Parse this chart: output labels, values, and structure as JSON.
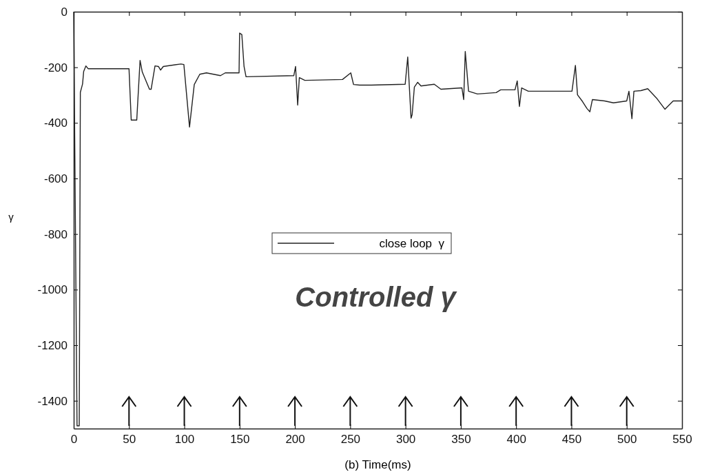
{
  "chart_data": {
    "type": "line",
    "xlabel": "(b) Time(ms)",
    "ylabel": "γ",
    "xlim": [
      0,
      550
    ],
    "xticks": [
      0,
      50,
      100,
      150,
      200,
      250,
      300,
      350,
      400,
      450,
      500,
      550
    ],
    "ylim": [
      -1500,
      0
    ],
    "yticks": [
      -1400,
      -1200,
      -1000,
      -800,
      -600,
      -400,
      -200,
      0
    ],
    "grid": false,
    "legend": "center",
    "annotations": [
      "Controlled γ"
    ],
    "series": [
      {
        "name": "close loop  γ",
        "color": "#222222",
        "x": [
          0,
          3,
          5,
          6,
          8,
          9,
          11,
          13,
          14,
          50,
          52,
          57,
          60,
          62,
          68.5,
          70,
          73.5,
          76.6,
          78.5,
          81,
          97,
          99.6,
          104.7,
          109,
          114,
          120,
          132.7,
          137,
          149.5,
          150,
          152,
          154,
          155.8,
          199,
          200.6,
          202.5,
          204,
          209,
          243,
          250.5,
          253,
          258.5,
          269,
          299.7,
          302,
          305,
          306,
          308,
          311,
          314,
          326,
          332,
          351,
          352.6,
          354,
          357,
          365,
          382,
          386,
          399,
          401,
          403,
          405,
          411,
          450.5,
          453.6,
          455.5,
          460,
          464,
          466.7,
          469,
          480,
          488,
          500,
          502,
          504.7,
          506.5,
          512.8,
          519,
          527,
          534.6,
          542,
          550
        ],
        "values": [
          0,
          -1490,
          -1490,
          -290,
          -260,
          -215,
          -195,
          -205,
          -205,
          -205,
          -390,
          -390,
          -175,
          -217,
          -279,
          -279,
          -195,
          -197,
          -210,
          -197,
          -188,
          -190,
          -415,
          -262,
          -225,
          -220,
          -230,
          -220,
          -220,
          -77,
          -82,
          -197,
          -234,
          -230,
          -197,
          -336,
          -237,
          -247,
          -244,
          -220,
          -262,
          -264,
          -264,
          -261,
          -163,
          -383,
          -370,
          -271,
          -254,
          -267,
          -261,
          -279,
          -274,
          -316,
          -143,
          -286,
          -296,
          -291,
          -281,
          -281,
          -249,
          -341,
          -274,
          -286,
          -286,
          -193,
          -299,
          -323,
          -348,
          -360,
          -316,
          -321,
          -328,
          -321,
          -286,
          -385,
          -286,
          -284,
          -277,
          -311,
          -351,
          -321,
          -321
        ]
      }
    ]
  }
}
